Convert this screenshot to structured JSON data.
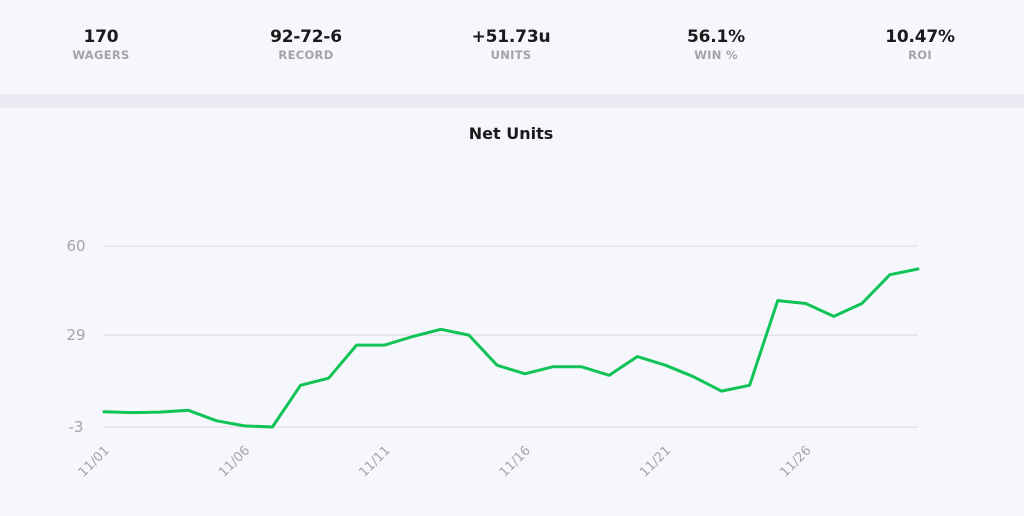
{
  "stats": [
    {
      "value": "170",
      "label": "WAGERS"
    },
    {
      "value": "92-72-6",
      "label": "RECORD"
    },
    {
      "value": "+51.73u",
      "label": "UNITS"
    },
    {
      "value": "56.1%",
      "label": "WIN %"
    },
    {
      "value": "10.47%",
      "label": "ROI"
    }
  ],
  "colors": {
    "line": "#10c356",
    "grid": "#d9dae0",
    "tick": "#a3a4ab",
    "text": "#1a1a1a"
  },
  "chart_data": {
    "type": "line",
    "title": "Net Units",
    "xlabel": "",
    "ylabel": "",
    "x": [
      "11/01",
      "11/02",
      "11/03",
      "11/04",
      "11/05",
      "11/06",
      "11/07",
      "11/08",
      "11/09",
      "11/10",
      "11/11",
      "11/12",
      "11/13",
      "11/14",
      "11/15",
      "11/16",
      "11/17",
      "11/18",
      "11/19",
      "11/20",
      "11/21",
      "11/22",
      "11/23",
      "11/24",
      "11/25",
      "11/26",
      "11/27",
      "11/28",
      "11/29",
      "11/30"
    ],
    "x_tick_labels": [
      "11/01",
      "11/06",
      "11/11",
      "11/16",
      "11/21",
      "11/26"
    ],
    "y_ticks": [
      60,
      29,
      -3
    ],
    "ylim": [
      -3,
      60
    ],
    "grid": true,
    "series": [
      {
        "values": [
          2.3,
          2.0,
          2.2,
          2.8,
          -0.8,
          -2.6,
          -3.0,
          11.5,
          14.0,
          25.5,
          25.5,
          28.5,
          31.0,
          29.0,
          18.5,
          15.5,
          18.0,
          18.0,
          15.0,
          21.5,
          18.5,
          14.5,
          9.5,
          11.5,
          41.0,
          40.0,
          35.5,
          40.0,
          50.0,
          52.0
        ]
      }
    ]
  }
}
